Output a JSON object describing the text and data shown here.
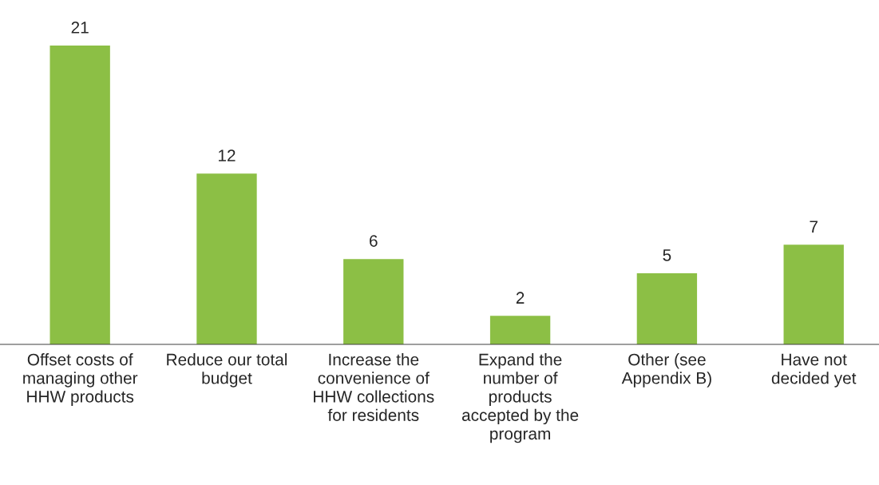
{
  "chart_data": {
    "type": "bar",
    "categories": [
      "Offset costs of\nmanaging other\nHHW products",
      "Reduce our total\nbudget",
      "Increase the\nconvenience of\nHHW collections\nfor residents",
      "Expand the\nnumber of\nproducts\naccepted by the\nprogram",
      "Other (see\nAppendix B)",
      "Have not\ndecided yet"
    ],
    "values": [
      21,
      12,
      6,
      2,
      5,
      7
    ],
    "color": "#8cbf45",
    "data_labels": true,
    "grid": false,
    "legend": false
  }
}
